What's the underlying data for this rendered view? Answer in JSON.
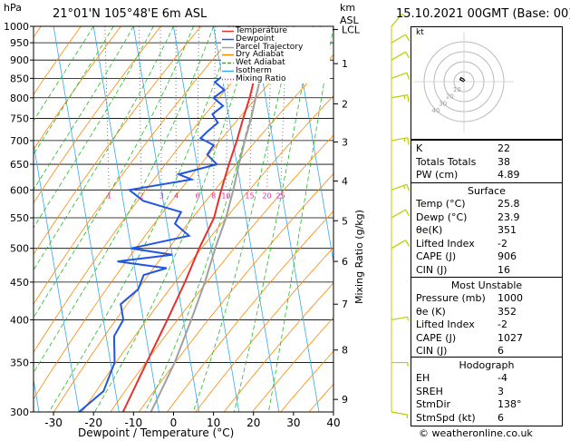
{
  "header": {
    "location": "21°01'N  105°48'E  6m  ASL",
    "datetime": "15.10.2021  00GMT  (Base: 00)",
    "hpa_label": "hPa",
    "km_label": "km",
    "asl_label": "ASL"
  },
  "legend": [
    "Temperature",
    "Dewpoint",
    "Parcel Trajectory",
    "Dry Adiabat",
    "Wet Adiabat",
    "Isotherm",
    "Mixing Ratio"
  ],
  "colors": {
    "temperature": "#e8312b",
    "dewpoint": "#2255e0",
    "parcel": "#a0a0a0",
    "dry_adiabat": "#ff8800",
    "wet_adiabat": "#22bb22",
    "isotherm": "#33aaee",
    "mixing_ratio": "#ee22aa",
    "wind": "#bbcc00"
  },
  "chart_data": {
    "type": "line",
    "title": "",
    "xlabel": "Dewpoint / Temperature (°C)",
    "ylabel": "hPa",
    "xlim": [
      -35,
      40
    ],
    "ylim": [
      1000,
      300
    ],
    "x_ticks": [
      -30,
      -20,
      -10,
      0,
      10,
      20,
      30,
      40
    ],
    "pressure_ticks": [
      300,
      350,
      400,
      450,
      500,
      550,
      600,
      650,
      700,
      750,
      800,
      850,
      900,
      950,
      1000
    ],
    "km_ticks": [
      {
        "label": "9",
        "p": 312
      },
      {
        "label": "8",
        "p": 364
      },
      {
        "label": "7",
        "p": 420
      },
      {
        "label": "6",
        "p": 480
      },
      {
        "label": "5",
        "p": 545
      },
      {
        "label": "4",
        "p": 617
      },
      {
        "label": "3",
        "p": 697
      },
      {
        "label": "2",
        "p": 785
      },
      {
        "label": "1",
        "p": 890
      },
      {
        "label": "LCL",
        "p": 990
      }
    ],
    "mixing_ratio_label": "Mixing Ratio (g/kg)",
    "mixing_ratio_values": [
      "1",
      "2",
      "3",
      "4",
      "6",
      "8",
      "10",
      "15",
      "20",
      "25"
    ],
    "mixing_ratio_label_p": 590,
    "series": [
      {
        "name": "Temperature",
        "points": [
          [
            1000,
            25.8
          ],
          [
            950,
            22.5
          ],
          [
            900,
            20
          ],
          [
            850,
            18
          ],
          [
            800,
            16
          ],
          [
            750,
            13.5
          ],
          [
            700,
            11
          ],
          [
            650,
            8
          ],
          [
            600,
            5
          ],
          [
            550,
            2
          ],
          [
            500,
            -3
          ],
          [
            450,
            -8
          ],
          [
            400,
            -14
          ],
          [
            350,
            -21
          ],
          [
            300,
            -29
          ]
        ]
      },
      {
        "name": "Dewpoint",
        "points": [
          [
            1000,
            23.9
          ],
          [
            950,
            21
          ],
          [
            900,
            18.5
          ],
          [
            870,
            12
          ],
          [
            840,
            8
          ],
          [
            820,
            10
          ],
          [
            800,
            7
          ],
          [
            780,
            9
          ],
          [
            760,
            6
          ],
          [
            740,
            7
          ],
          [
            720,
            4
          ],
          [
            705,
            2
          ],
          [
            690,
            5
          ],
          [
            670,
            3
          ],
          [
            650,
            5
          ],
          [
            630,
            -5
          ],
          [
            620,
            -2
          ],
          [
            600,
            -18
          ],
          [
            580,
            -15
          ],
          [
            560,
            -6
          ],
          [
            540,
            -8
          ],
          [
            520,
            -5
          ],
          [
            500,
            -20
          ],
          [
            490,
            -10
          ],
          [
            480,
            -24
          ],
          [
            470,
            -12
          ],
          [
            460,
            -18
          ],
          [
            440,
            -20
          ],
          [
            420,
            -25
          ],
          [
            400,
            -25
          ],
          [
            380,
            -28
          ],
          [
            350,
            -29
          ],
          [
            320,
            -33
          ],
          [
            300,
            -40
          ]
        ]
      },
      {
        "name": "Parcel Trajectory",
        "points": [
          [
            1000,
            25.8
          ],
          [
            950,
            23
          ],
          [
            900,
            21
          ],
          [
            850,
            19.5
          ],
          [
            800,
            17.5
          ],
          [
            750,
            15.5
          ],
          [
            700,
            13
          ],
          [
            650,
            10.5
          ],
          [
            600,
            8
          ],
          [
            550,
            5
          ],
          [
            500,
            1
          ],
          [
            450,
            -3
          ],
          [
            400,
            -8
          ],
          [
            350,
            -14
          ],
          [
            300,
            -22
          ]
        ]
      }
    ],
    "wind_barbs": [
      {
        "p": 1000,
        "dir": 40,
        "spd": 5
      },
      {
        "p": 950,
        "dir": 60,
        "spd": 10
      },
      {
        "p": 900,
        "dir": 60,
        "spd": 10
      },
      {
        "p": 850,
        "dir": 70,
        "spd": 10
      },
      {
        "p": 800,
        "dir": 80,
        "spd": 15
      },
      {
        "p": 700,
        "dir": 80,
        "spd": 15
      },
      {
        "p": 600,
        "dir": 70,
        "spd": 15
      },
      {
        "p": 550,
        "dir": 60,
        "spd": 10
      },
      {
        "p": 500,
        "dir": 60,
        "spd": 10
      },
      {
        "p": 400,
        "dir": 80,
        "spd": 5
      },
      {
        "p": 350,
        "dir": 90,
        "spd": 5
      },
      {
        "p": 300,
        "dir": 100,
        "spd": 5
      }
    ]
  },
  "hodograph": {
    "label": "kt",
    "ring_labels": [
      "10",
      "20",
      "30",
      "40"
    ],
    "trace": [
      [
        0,
        0
      ],
      [
        -2,
        1
      ],
      [
        -4,
        2
      ],
      [
        -3,
        4
      ],
      [
        -1,
        3
      ],
      [
        0,
        2
      ],
      [
        1,
        1
      ]
    ]
  },
  "indices": {
    "rows": [
      {
        "k": "K",
        "v": "22"
      },
      {
        "k": "Totals Totals",
        "v": "38"
      },
      {
        "k": "PW (cm)",
        "v": "4.89"
      }
    ]
  },
  "surface": {
    "title": "Surface",
    "rows": [
      {
        "k": "Temp (°C)",
        "v": "25.8"
      },
      {
        "k": "Dewp (°C)",
        "v": "23.9"
      },
      {
        "k": "θe(K)",
        "v": "351"
      },
      {
        "k": "Lifted Index",
        "v": "-2"
      },
      {
        "k": "CAPE (J)",
        "v": "906"
      },
      {
        "k": "CIN (J)",
        "v": "16"
      }
    ]
  },
  "most_unstable": {
    "title": "Most Unstable",
    "rows": [
      {
        "k": "Pressure (mb)",
        "v": "1000"
      },
      {
        "k": "θe (K)",
        "v": "352"
      },
      {
        "k": "Lifted Index",
        "v": "-2"
      },
      {
        "k": "CAPE (J)",
        "v": "1027"
      },
      {
        "k": "CIN (J)",
        "v": "6"
      }
    ]
  },
  "hodo_table": {
    "title": "Hodograph",
    "rows": [
      {
        "k": "EH",
        "v": "-4"
      },
      {
        "k": "SREH",
        "v": "3"
      },
      {
        "k": "StmDir",
        "v": "138°"
      },
      {
        "k": "StmSpd (kt)",
        "v": "6"
      }
    ]
  },
  "footer": {
    "copyright": "© weatheronline.co.uk"
  }
}
